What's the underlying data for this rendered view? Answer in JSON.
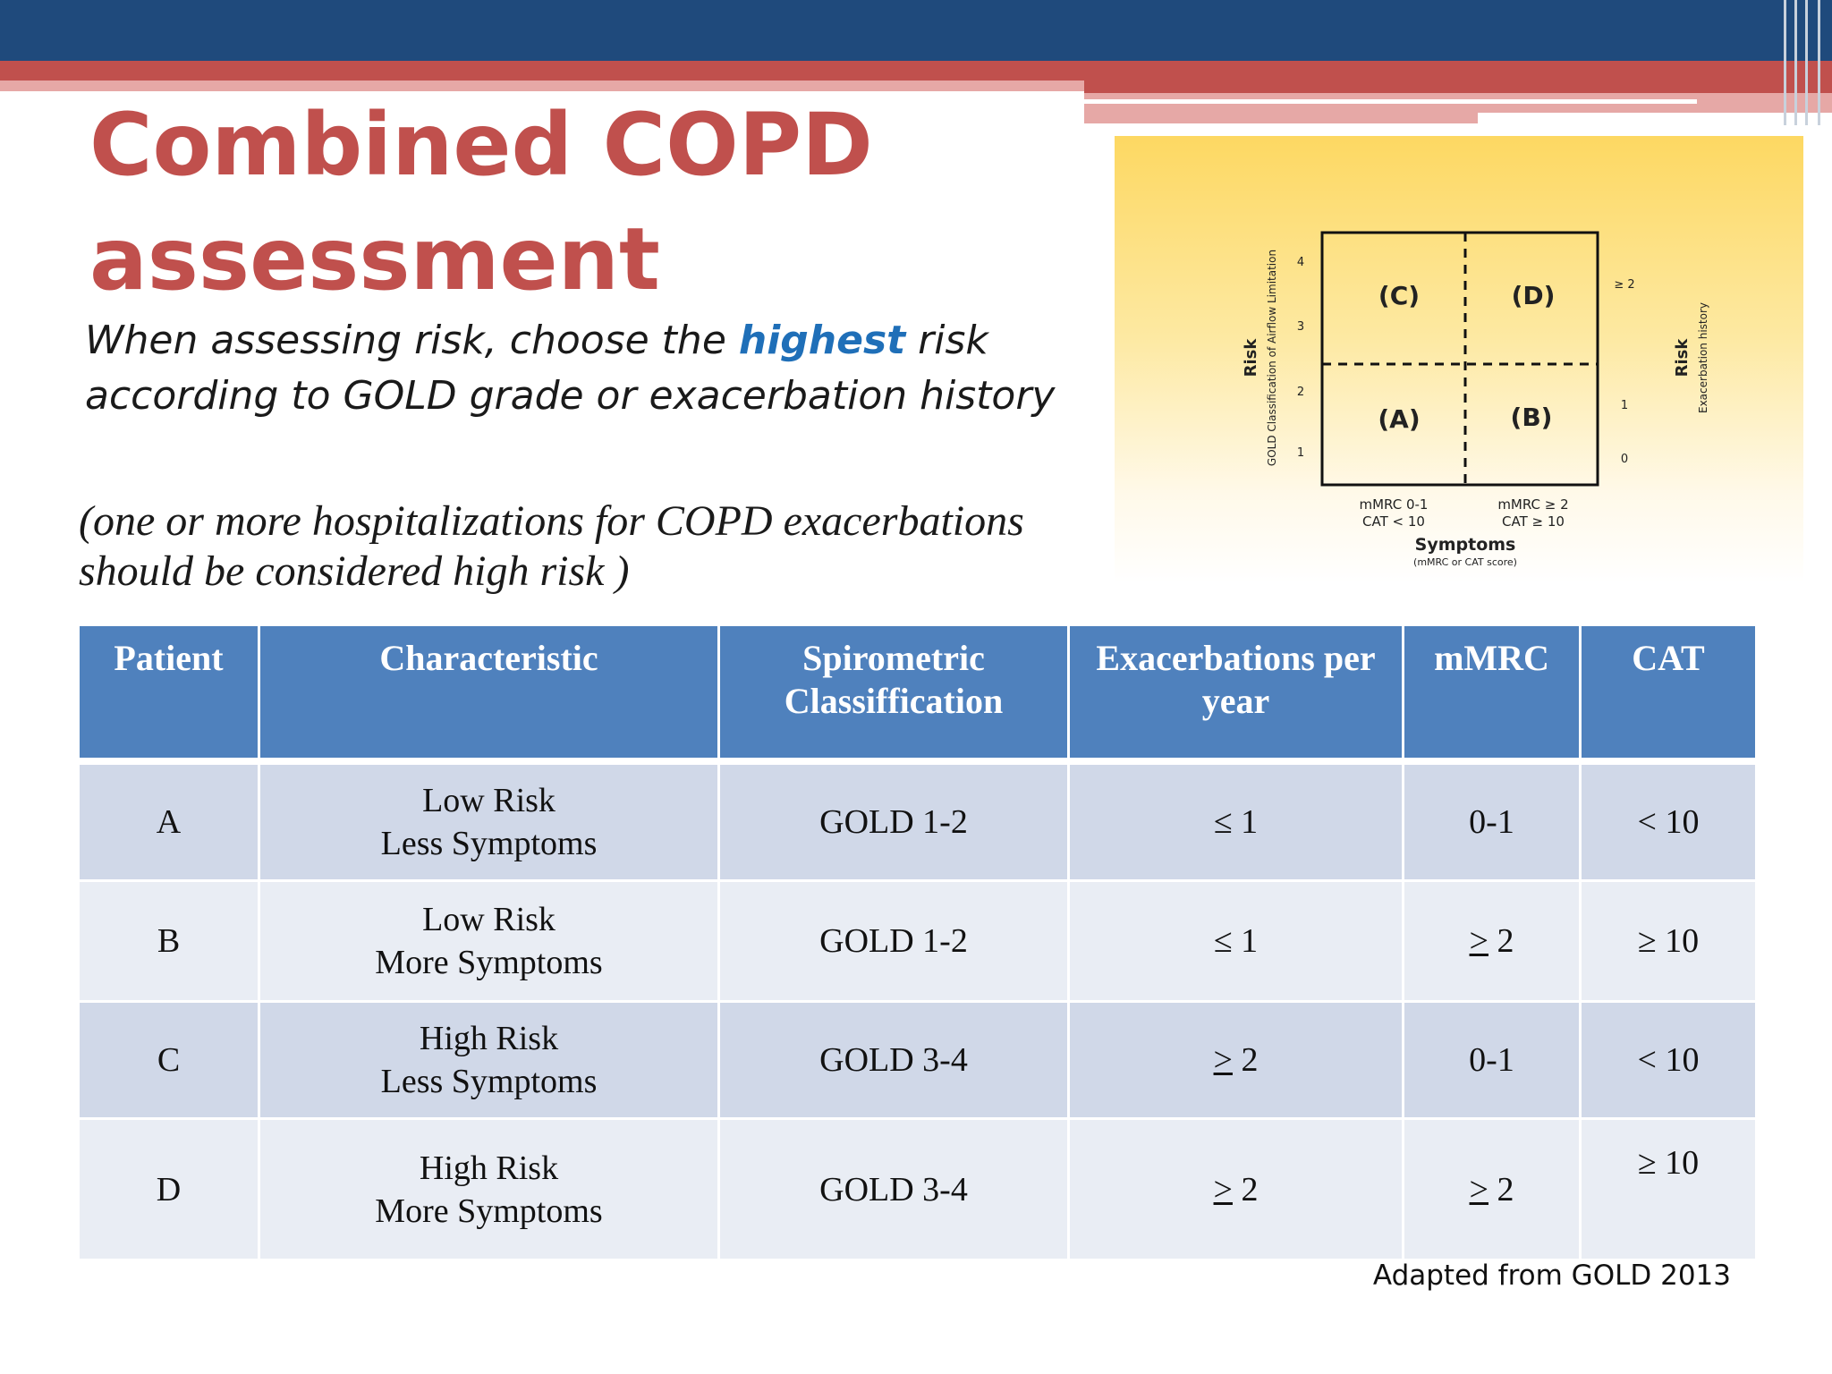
{
  "title_line1": "Combined COPD",
  "title_line2": "assessment",
  "subtitle": {
    "before": "When assessing risk, choose the ",
    "highlight": "highest",
    "after": " risk according to GOLD grade or exacerbation history"
  },
  "note_line1": "(one or more hospitalizations for COPD exacerbations",
  "note_line2": "should be considered high risk )",
  "figure": {
    "quadrant_c": "(C)",
    "quadrant_d": "(D)",
    "quadrant_a": "(A)",
    "quadrant_b": "(B)",
    "left_axis_title": "Risk",
    "left_axis_subtitle": "GOLD Classification of Airflow Limitation",
    "left_ticks": [
      "4",
      "3",
      "2",
      "1"
    ],
    "right_axis_title": "Risk",
    "right_axis_subtitle": "Exacerbation history",
    "right_ticks": [
      "≥ 2",
      "1",
      "0"
    ],
    "bottom_left_line1": "mMRC 0-1",
    "bottom_left_line2": "CAT < 10",
    "bottom_right_line1": "mMRC ≥ 2",
    "bottom_right_line2": "CAT ≥ 10",
    "x_title": "Symptoms",
    "x_subtitle": "(mMRC or CAT score)"
  },
  "table": {
    "headers": [
      "Patient",
      "Characteristic",
      "Spirometric Classiffication",
      "Exacerbations per year",
      "mMRC",
      "CAT"
    ],
    "rows": [
      {
        "patient": "A",
        "char1": "Low Risk",
        "char2": "Less Symptoms",
        "spiro": "GOLD 1-2",
        "exac_sym": "≤",
        "exac_val": "1",
        "mmrc_sym": "",
        "mmrc_val": "0-1",
        "cat": "< 10"
      },
      {
        "patient": "B",
        "char1": "Low Risk",
        "char2": "More Symptoms",
        "spiro": "GOLD 1-2",
        "exac_sym": "≤",
        "exac_val": "1",
        "mmrc_sym": ">",
        "mmrc_val": "2",
        "cat": "≥ 10"
      },
      {
        "patient": "C",
        "char1": "High Risk",
        "char2": "Less Symptoms",
        "spiro": "GOLD 3-4",
        "exac_sym": ">",
        "exac_val": "2",
        "mmrc_sym": "",
        "mmrc_val": "0-1",
        "cat": "< 10"
      },
      {
        "patient": "D",
        "char1": "High Risk",
        "char2": "More Symptoms",
        "spiro": "GOLD 3-4",
        "exac_sym": ">",
        "exac_val": "2",
        "mmrc_sym": ">",
        "mmrc_val": "2",
        "cat": "≥ 10"
      }
    ]
  },
  "source": "Adapted from GOLD 2013"
}
